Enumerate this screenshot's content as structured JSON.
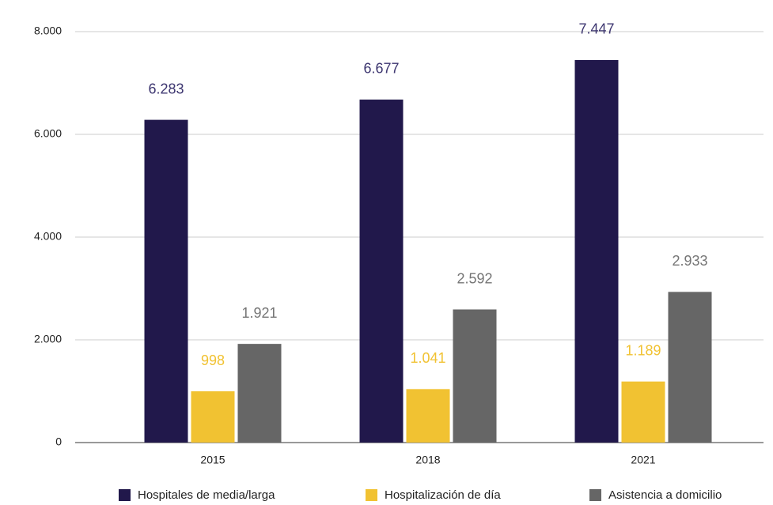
{
  "chart_data": {
    "type": "bar",
    "categories": [
      "2015",
      "2018",
      "2021"
    ],
    "series": [
      {
        "name": "Hospitales de media/larga",
        "color": "#21184b",
        "values": [
          6283,
          6677,
          7447
        ],
        "value_labels": [
          "6.283",
          "6.677",
          "7.447"
        ]
      },
      {
        "name": "Hospitalización de día",
        "color": "#f1c232",
        "values": [
          998,
          1041,
          1189
        ],
        "value_labels": [
          "998",
          "1.041",
          "1.189"
        ]
      },
      {
        "name": "Asistencia a domicilio",
        "color": "#666666",
        "values": [
          1921,
          2592,
          2933
        ],
        "value_labels": [
          "1.921",
          "2.592",
          "2.933"
        ]
      }
    ],
    "ylim": [
      0,
      8000
    ],
    "yticks": [
      0,
      {
        "value": 2000,
        "label": "2.000"
      },
      {
        "value": 4000,
        "label": "4.000"
      },
      {
        "value": 6000,
        "label": "6.000"
      },
      {
        "value": 8000,
        "label": "8.000"
      }
    ],
    "grid": true,
    "legend": "bottom"
  }
}
